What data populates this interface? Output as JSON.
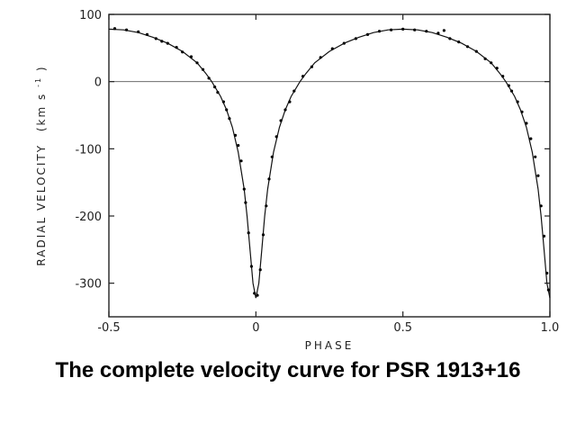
{
  "caption": "The complete velocity curve for PSR 1913+16",
  "chart_data": {
    "type": "scatter",
    "xlabel": "PHASE",
    "ylabel": "RADIAL VELOCITY",
    "ylabel_unit_base": "(km s",
    "ylabel_unit_sup": "-1",
    "ylabel_unit_close": ")",
    "xlim": [
      -0.5,
      1.0
    ],
    "ylim": [
      -350,
      100
    ],
    "x_ticks": [
      -0.5,
      0,
      0.5,
      1.0
    ],
    "x_tick_labels": [
      "-0.5",
      "0",
      "0.5",
      "1.0"
    ],
    "y_ticks": [
      100,
      0,
      -100,
      -200,
      -300
    ],
    "y_tick_labels": [
      "100",
      "0",
      "-100",
      "-200",
      "-300"
    ],
    "reference_line_y": 0,
    "grid": false,
    "series": [
      {
        "style": "line",
        "x": [
          -0.5,
          -0.45,
          -0.4,
          -0.35,
          -0.3,
          -0.25,
          -0.2,
          -0.17,
          -0.15,
          -0.12,
          -0.1,
          -0.08,
          -0.06,
          -0.04,
          -0.03,
          -0.02,
          -0.01,
          0.0,
          0.01,
          0.02,
          0.03,
          0.04,
          0.06,
          0.08,
          0.1,
          0.12,
          0.15,
          0.17,
          0.2,
          0.25,
          0.3,
          0.35,
          0.4,
          0.45,
          0.5,
          0.55,
          0.6,
          0.65,
          0.7,
          0.75,
          0.8,
          0.83,
          0.85,
          0.88,
          0.9,
          0.92,
          0.94,
          0.96,
          0.97,
          0.98,
          0.99,
          1.0
        ],
        "y": [
          78,
          77,
          73,
          66,
          57,
          45,
          28,
          12,
          0,
          -22,
          -42,
          -68,
          -105,
          -160,
          -200,
          -250,
          -300,
          -322,
          -300,
          -250,
          -200,
          -160,
          -105,
          -68,
          -42,
          -22,
          0,
          12,
          28,
          45,
          57,
          66,
          73,
          77,
          78,
          77,
          73,
          66,
          57,
          45,
          28,
          12,
          0,
          -22,
          -42,
          -68,
          -105,
          -160,
          -200,
          -250,
          -300,
          -322
        ]
      },
      {
        "style": "points",
        "x": [
          -0.48,
          -0.44,
          -0.4,
          -0.37,
          -0.34,
          -0.32,
          -0.3,
          -0.27,
          -0.25,
          -0.22,
          -0.2,
          -0.18,
          -0.16,
          -0.14,
          -0.13,
          -0.11,
          -0.1,
          -0.09,
          -0.07,
          -0.06,
          -0.05,
          -0.04,
          -0.035,
          -0.025,
          -0.015,
          -0.005,
          0.005,
          0.015,
          0.025,
          0.035,
          0.045,
          0.055,
          0.07,
          0.085,
          0.1,
          0.115,
          0.13,
          0.16,
          0.19,
          0.22,
          0.26,
          0.3,
          0.34,
          0.38,
          0.42,
          0.46,
          0.5,
          0.54,
          0.58,
          0.62,
          0.64,
          0.66,
          0.69,
          0.72,
          0.75,
          0.78,
          0.8,
          0.82,
          0.84,
          0.86,
          0.87,
          0.89,
          0.905,
          0.92,
          0.935,
          0.95,
          0.96,
          0.97,
          0.98,
          0.99,
          0.995
        ],
        "y": [
          79,
          77,
          74,
          70,
          64,
          60,
          57,
          51,
          44,
          37,
          28,
          18,
          5,
          -8,
          -16,
          -30,
          -42,
          -55,
          -80,
          -95,
          -118,
          -160,
          -180,
          -225,
          -275,
          -315,
          -318,
          -280,
          -228,
          -185,
          -145,
          -112,
          -82,
          -58,
          -42,
          -30,
          -14,
          8,
          22,
          36,
          49,
          57,
          64,
          70,
          75,
          77,
          78,
          77,
          75,
          72,
          76,
          64,
          59,
          52,
          45,
          34,
          28,
          20,
          8,
          -6,
          -14,
          -30,
          -45,
          -62,
          -85,
          -112,
          -140,
          -185,
          -230,
          -285,
          -310
        ]
      }
    ]
  }
}
